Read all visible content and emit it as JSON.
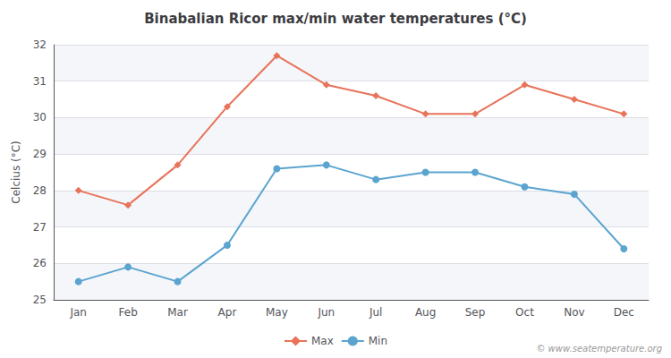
{
  "chart_data": {
    "type": "line",
    "title": "Binabalian Ricor max/min water temperatures (°C)",
    "ylabel": "Celcius (°C)",
    "categories": [
      "Jan",
      "Feb",
      "Mar",
      "Apr",
      "May",
      "Jun",
      "Jul",
      "Aug",
      "Sep",
      "Oct",
      "Nov",
      "Dec"
    ],
    "series": [
      {
        "name": "Max",
        "color": "#e8735a",
        "marker": "diamond",
        "values": [
          28.0,
          27.6,
          28.7,
          30.3,
          31.7,
          30.9,
          30.6,
          30.1,
          30.1,
          30.9,
          30.5,
          30.1
        ]
      },
      {
        "name": "Min",
        "color": "#5ba4cf",
        "marker": "circle",
        "values": [
          25.5,
          25.9,
          25.5,
          26.5,
          28.6,
          28.7,
          28.3,
          28.5,
          28.5,
          28.1,
          27.9,
          26.4
        ]
      }
    ],
    "ylim": [
      25,
      32
    ],
    "yticks": [
      25,
      26,
      27,
      28,
      29,
      30,
      31,
      32
    ],
    "grid": true,
    "legend": "bottom",
    "annotations": [
      "© www.seatemperature.org"
    ]
  }
}
